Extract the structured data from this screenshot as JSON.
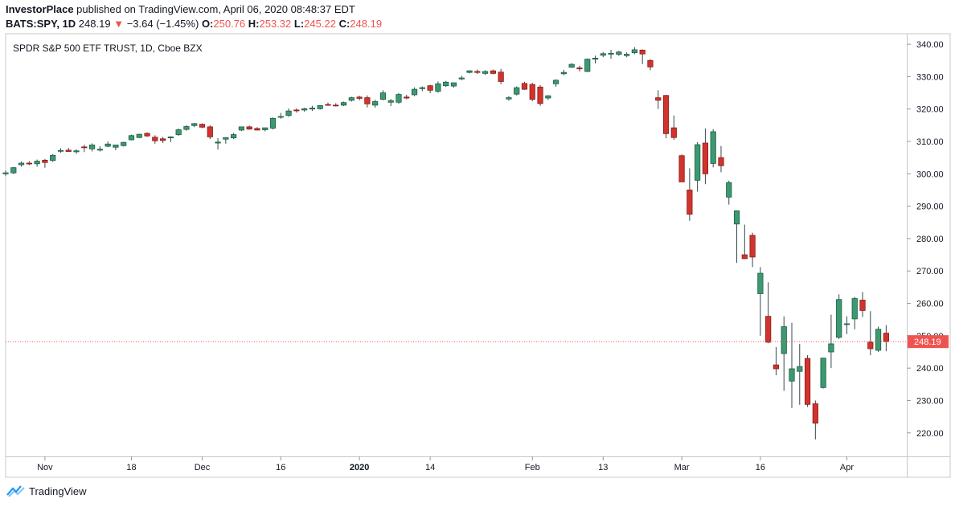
{
  "header": {
    "publisher": "InvestorPlace",
    "published_text": "published on TradingView.com, April 06, 2020 08:48:37 EDT",
    "symbol": "BATS:SPY, 1D",
    "last": "248.19",
    "arrow": "▼",
    "change": "−3.64 (−1.45%)",
    "o_label": "O:",
    "o_value": "250.76",
    "h_label": "H:",
    "h_value": "253.32",
    "l_label": "L:",
    "l_value": "245.22",
    "c_label": "C:",
    "c_value": "248.19"
  },
  "legend": "SPDR S&P 500 ETF TRUST, 1D, Cboe BZX",
  "footer": {
    "brand": "TradingView"
  },
  "colors": {
    "up": "#26a69a",
    "up_fill": "#3d9970",
    "down": "#ef5350",
    "down_fill": "#d0342c",
    "price_line": "#ef5350"
  },
  "chart_data": {
    "type": "candlestick",
    "title": "SPDR S&P 500 ETF TRUST, 1D, Cboe BZX",
    "ylim": [
      213,
      343
    ],
    "y_ticks": [
      220,
      230,
      240,
      250,
      260,
      270,
      280,
      290,
      300,
      310,
      320,
      330,
      340
    ],
    "y_tick_labels": [
      "220.00",
      "230.00",
      "240.00",
      "250.00",
      "260.00",
      "270.00",
      "280.00",
      "290.00",
      "300.00",
      "310.00",
      "320.00",
      "330.00",
      "340.00"
    ],
    "x_ticks": [
      {
        "label": "Nov",
        "index": 5,
        "bold": false
      },
      {
        "label": "18",
        "index": 16,
        "bold": false
      },
      {
        "label": "Dec",
        "index": 25,
        "bold": false
      },
      {
        "label": "16",
        "index": 35,
        "bold": false
      },
      {
        "label": "2020",
        "index": 45,
        "bold": true
      },
      {
        "label": "14",
        "index": 54,
        "bold": false
      },
      {
        "label": "Feb",
        "index": 67,
        "bold": false
      },
      {
        "label": "13",
        "index": 76,
        "bold": false
      },
      {
        "label": "Mar",
        "index": 86,
        "bold": false
      },
      {
        "label": "16",
        "index": 96,
        "bold": false
      },
      {
        "label": "Apr",
        "index": 107,
        "bold": false
      }
    ],
    "last_price": 248.19,
    "last_price_label": "248.19",
    "candles": [
      {
        "o": 300.0,
        "h": 301.0,
        "l": 299.4,
        "c": 300.3
      },
      {
        "o": 300.3,
        "h": 302.1,
        "l": 299.9,
        "c": 301.9
      },
      {
        "o": 302.8,
        "h": 303.8,
        "l": 302.2,
        "c": 303.3
      },
      {
        "o": 303.3,
        "h": 303.9,
        "l": 302.7,
        "c": 303.2
      },
      {
        "o": 303.1,
        "h": 304.4,
        "l": 302.2,
        "c": 303.9
      },
      {
        "o": 304.2,
        "h": 304.6,
        "l": 301.9,
        "c": 303.5
      },
      {
        "o": 304.1,
        "h": 306.1,
        "l": 303.7,
        "c": 305.7
      },
      {
        "o": 307.1,
        "h": 307.9,
        "l": 306.5,
        "c": 307.2
      },
      {
        "o": 307.3,
        "h": 308.0,
        "l": 306.8,
        "c": 306.9
      },
      {
        "o": 306.8,
        "h": 307.6,
        "l": 306.2,
        "c": 307.1
      },
      {
        "o": 308.3,
        "h": 309.0,
        "l": 306.7,
        "c": 308.1
      },
      {
        "o": 307.7,
        "h": 309.4,
        "l": 306.9,
        "c": 308.9
      },
      {
        "o": 307.3,
        "h": 308.5,
        "l": 306.9,
        "c": 307.6
      },
      {
        "o": 308.5,
        "h": 310.0,
        "l": 308.2,
        "c": 309.2
      },
      {
        "o": 308.2,
        "h": 308.9,
        "l": 307.3,
        "c": 308.9
      },
      {
        "o": 308.7,
        "h": 309.9,
        "l": 308.4,
        "c": 309.7
      },
      {
        "o": 310.5,
        "h": 312.1,
        "l": 310.3,
        "c": 311.8
      },
      {
        "o": 311.2,
        "h": 312.4,
        "l": 311.0,
        "c": 312.2
      },
      {
        "o": 312.5,
        "h": 312.8,
        "l": 311.4,
        "c": 311.7
      },
      {
        "o": 311.3,
        "h": 311.9,
        "l": 309.3,
        "c": 310.2
      },
      {
        "o": 310.8,
        "h": 311.4,
        "l": 309.5,
        "c": 310.3
      },
      {
        "o": 311.1,
        "h": 311.6,
        "l": 309.8,
        "c": 311.4
      },
      {
        "o": 312.1,
        "h": 314.0,
        "l": 311.7,
        "c": 313.6
      },
      {
        "o": 313.7,
        "h": 315.0,
        "l": 313.3,
        "c": 314.6
      },
      {
        "o": 314.9,
        "h": 315.7,
        "l": 314.4,
        "c": 315.5
      },
      {
        "o": 315.3,
        "h": 315.6,
        "l": 314.1,
        "c": 314.4
      },
      {
        "o": 314.5,
        "h": 315.0,
        "l": 310.7,
        "c": 311.4
      },
      {
        "o": 309.5,
        "h": 311.0,
        "l": 307.5,
        "c": 309.8
      },
      {
        "o": 310.7,
        "h": 311.3,
        "l": 309.3,
        "c": 311.2
      },
      {
        "o": 311.1,
        "h": 312.6,
        "l": 310.7,
        "c": 312.1
      },
      {
        "o": 313.5,
        "h": 314.6,
        "l": 313.2,
        "c": 314.5
      },
      {
        "o": 314.5,
        "h": 314.9,
        "l": 313.6,
        "c": 313.8
      },
      {
        "o": 314.0,
        "h": 314.4,
        "l": 313.4,
        "c": 313.5
      },
      {
        "o": 313.6,
        "h": 314.2,
        "l": 313.1,
        "c": 314.2
      },
      {
        "o": 314.1,
        "h": 317.4,
        "l": 313.7,
        "c": 317.1
      },
      {
        "o": 317.5,
        "h": 318.8,
        "l": 317.0,
        "c": 317.7
      },
      {
        "o": 318.0,
        "h": 320.2,
        "l": 317.6,
        "c": 319.4
      },
      {
        "o": 319.7,
        "h": 320.2,
        "l": 318.9,
        "c": 319.6
      },
      {
        "o": 319.7,
        "h": 320.4,
        "l": 319.2,
        "c": 320.1
      },
      {
        "o": 320.0,
        "h": 321.0,
        "l": 319.4,
        "c": 320.3
      },
      {
        "o": 320.1,
        "h": 321.2,
        "l": 319.8,
        "c": 321.1
      },
      {
        "o": 321.4,
        "h": 322.0,
        "l": 321.0,
        "c": 321.2
      },
      {
        "o": 321.2,
        "h": 321.8,
        "l": 320.8,
        "c": 321.0
      },
      {
        "o": 321.2,
        "h": 322.3,
        "l": 320.9,
        "c": 322.0
      },
      {
        "o": 322.7,
        "h": 323.8,
        "l": 322.3,
        "c": 323.5
      },
      {
        "o": 323.7,
        "h": 324.1,
        "l": 322.7,
        "c": 323.3
      },
      {
        "o": 323.5,
        "h": 324.2,
        "l": 320.5,
        "c": 321.6
      },
      {
        "o": 321.2,
        "h": 322.9,
        "l": 320.4,
        "c": 322.3
      },
      {
        "o": 323.0,
        "h": 325.8,
        "l": 322.7,
        "c": 325.0
      },
      {
        "o": 322.1,
        "h": 323.1,
        "l": 320.9,
        "c": 322.6
      },
      {
        "o": 322.1,
        "h": 324.9,
        "l": 321.6,
        "c": 324.5
      },
      {
        "o": 323.7,
        "h": 324.4,
        "l": 323.0,
        "c": 323.4
      },
      {
        "o": 324.4,
        "h": 326.7,
        "l": 324.0,
        "c": 326.1
      },
      {
        "o": 326.3,
        "h": 327.0,
        "l": 325.5,
        "c": 326.6
      },
      {
        "o": 327.2,
        "h": 327.5,
        "l": 324.9,
        "c": 325.8
      },
      {
        "o": 325.5,
        "h": 328.5,
        "l": 325.0,
        "c": 327.8
      },
      {
        "o": 327.2,
        "h": 328.7,
        "l": 326.8,
        "c": 328.3
      },
      {
        "o": 327.1,
        "h": 328.2,
        "l": 326.6,
        "c": 328.1
      },
      {
        "o": 329.3,
        "h": 330.3,
        "l": 328.9,
        "c": 329.6
      },
      {
        "o": 331.3,
        "h": 332.0,
        "l": 331.0,
        "c": 331.8
      },
      {
        "o": 331.6,
        "h": 332.2,
        "l": 330.8,
        "c": 331.3
      },
      {
        "o": 331.0,
        "h": 332.0,
        "l": 330.5,
        "c": 331.6
      },
      {
        "o": 331.8,
        "h": 332.2,
        "l": 330.7,
        "c": 331.0
      },
      {
        "o": 331.4,
        "h": 332.4,
        "l": 327.7,
        "c": 328.5
      },
      {
        "o": 323.1,
        "h": 324.0,
        "l": 322.6,
        "c": 323.5
      },
      {
        "o": 324.6,
        "h": 327.0,
        "l": 324.2,
        "c": 326.6
      },
      {
        "o": 327.9,
        "h": 328.4,
        "l": 325.9,
        "c": 326.1
      },
      {
        "o": 327.6,
        "h": 328.1,
        "l": 322.4,
        "c": 323.0
      },
      {
        "o": 326.8,
        "h": 327.4,
        "l": 321.0,
        "c": 321.7
      },
      {
        "o": 323.4,
        "h": 324.3,
        "l": 322.8,
        "c": 324.1
      },
      {
        "o": 327.8,
        "h": 329.2,
        "l": 326.9,
        "c": 328.9
      },
      {
        "o": 330.9,
        "h": 332.1,
        "l": 330.4,
        "c": 331.3
      },
      {
        "o": 332.9,
        "h": 334.2,
        "l": 332.7,
        "c": 333.8
      },
      {
        "o": 332.7,
        "h": 333.4,
        "l": 331.6,
        "c": 332.4
      },
      {
        "o": 331.6,
        "h": 335.6,
        "l": 331.4,
        "c": 335.4
      },
      {
        "o": 335.4,
        "h": 336.5,
        "l": 334.1,
        "c": 335.7
      },
      {
        "o": 336.6,
        "h": 337.6,
        "l": 336.0,
        "c": 337.1
      },
      {
        "o": 337.1,
        "h": 338.3,
        "l": 335.5,
        "c": 337.2
      },
      {
        "o": 336.9,
        "h": 338.0,
        "l": 336.4,
        "c": 337.6
      },
      {
        "o": 336.5,
        "h": 337.5,
        "l": 336.0,
        "c": 336.9
      },
      {
        "o": 337.4,
        "h": 339.1,
        "l": 336.9,
        "c": 338.3
      },
      {
        "o": 338.2,
        "h": 338.4,
        "l": 333.9,
        "c": 337.0
      },
      {
        "o": 335.0,
        "h": 335.4,
        "l": 332.0,
        "c": 333.0
      },
      {
        "o": 323.5,
        "h": 325.8,
        "l": 320.0,
        "c": 322.7
      },
      {
        "o": 324.2,
        "h": 324.4,
        "l": 311.0,
        "c": 312.4
      },
      {
        "o": 314.2,
        "h": 318.0,
        "l": 310.5,
        "c": 311.2
      },
      {
        "o": 305.6,
        "h": 306.0,
        "l": 297.5,
        "c": 297.5
      },
      {
        "o": 295.0,
        "h": 301.7,
        "l": 285.5,
        "c": 287.5
      },
      {
        "o": 298.0,
        "h": 309.8,
        "l": 294.5,
        "c": 309.0
      },
      {
        "o": 309.5,
        "h": 314.0,
        "l": 296.8,
        "c": 300.0
      },
      {
        "o": 303.2,
        "h": 313.8,
        "l": 302.0,
        "c": 313.0
      },
      {
        "o": 305.0,
        "h": 308.6,
        "l": 300.5,
        "c": 302.5
      },
      {
        "o": 292.8,
        "h": 297.9,
        "l": 290.5,
        "c": 297.3
      },
      {
        "o": 284.5,
        "h": 288.7,
        "l": 272.5,
        "c": 288.6
      },
      {
        "o": 275.0,
        "h": 284.3,
        "l": 273.7,
        "c": 273.8
      },
      {
        "o": 281.0,
        "h": 281.8,
        "l": 271.2,
        "c": 274.3
      },
      {
        "o": 263.0,
        "h": 271.2,
        "l": 250.0,
        "c": 269.3
      },
      {
        "o": 256.0,
        "h": 266.5,
        "l": 247.7,
        "c": 248.0
      },
      {
        "o": 241.0,
        "h": 246.5,
        "l": 237.8,
        "c": 239.8
      },
      {
        "o": 244.5,
        "h": 256.0,
        "l": 233.0,
        "c": 252.8
      },
      {
        "o": 236.0,
        "h": 254.0,
        "l": 227.7,
        "c": 239.8
      },
      {
        "o": 239.0,
        "h": 247.5,
        "l": 228.7,
        "c": 240.5
      },
      {
        "o": 243.0,
        "h": 244.0,
        "l": 228.0,
        "c": 228.8
      },
      {
        "o": 229.0,
        "h": 230.0,
        "l": 218.0,
        "c": 223.0
      },
      {
        "o": 234.0,
        "h": 243.1,
        "l": 233.7,
        "c": 243.1
      },
      {
        "o": 245.0,
        "h": 256.5,
        "l": 240.0,
        "c": 247.5
      },
      {
        "o": 249.5,
        "h": 262.8,
        "l": 249.0,
        "c": 261.2
      },
      {
        "o": 253.5,
        "h": 256.0,
        "l": 250.5,
        "c": 253.7
      },
      {
        "o": 255.2,
        "h": 262.0,
        "l": 252.0,
        "c": 261.5
      },
      {
        "o": 261.0,
        "h": 263.5,
        "l": 255.8,
        "c": 257.8
      },
      {
        "o": 248.0,
        "h": 257.6,
        "l": 244.0,
        "c": 246.0
      },
      {
        "o": 245.5,
        "h": 252.8,
        "l": 245.0,
        "c": 252.0
      },
      {
        "o": 250.8,
        "h": 253.3,
        "l": 245.2,
        "c": 248.2
      }
    ]
  }
}
